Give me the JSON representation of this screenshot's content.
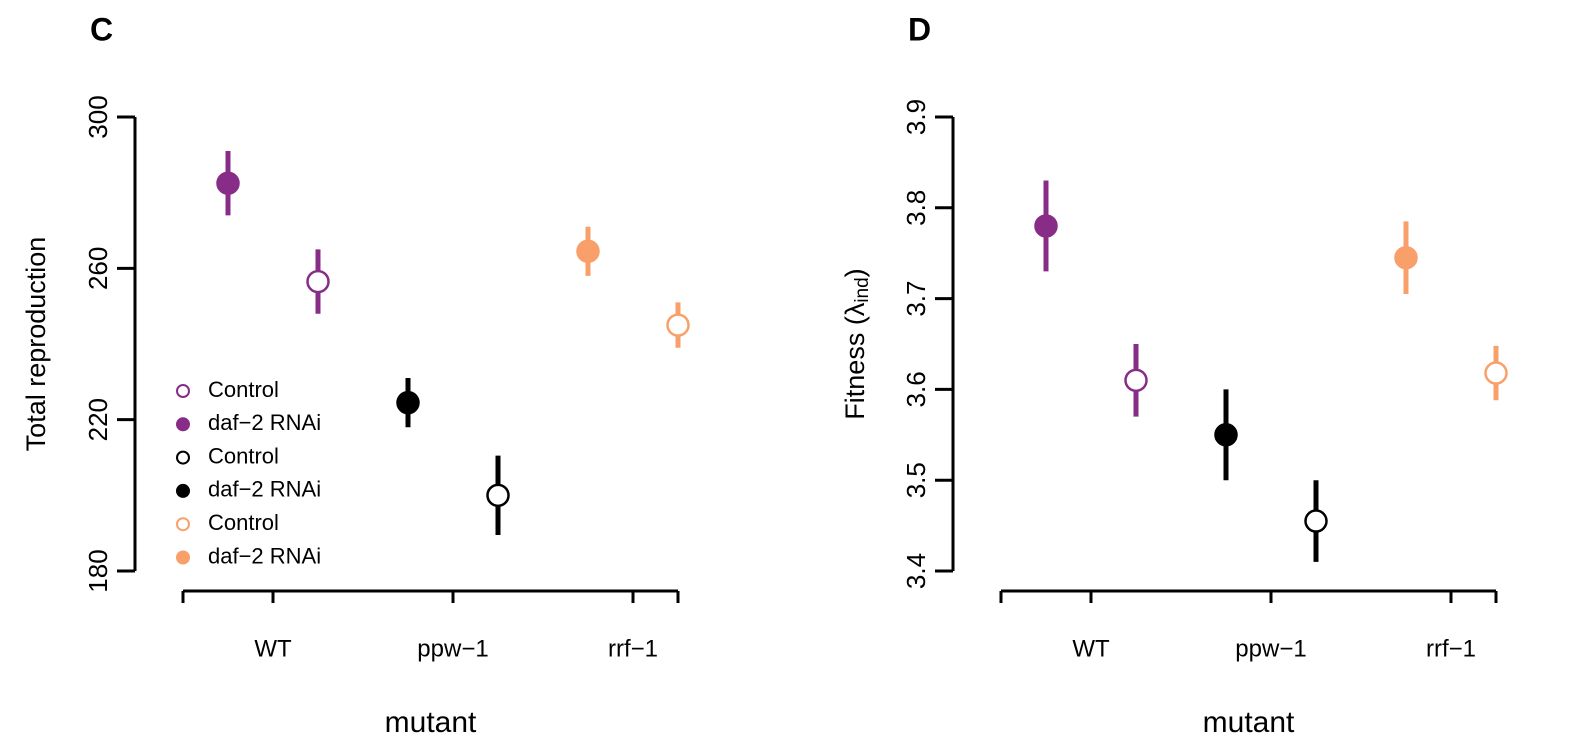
{
  "chart_data": [
    {
      "type": "dot-errorbar",
      "panel_label": "C",
      "ylabel": "Total reproduction",
      "xlabel": "mutant",
      "categories": [
        "WT",
        "ppw−1",
        "rrf−1"
      ],
      "ylim": [
        180,
        300
      ],
      "yticks": [
        180,
        220,
        260,
        300
      ],
      "legend": "bottomleft",
      "series": [
        {
          "name": "Control",
          "color": "#882d87",
          "filled": false,
          "values": [
            256.5,
            null,
            null
          ],
          "errors": [
            8.5,
            null,
            null
          ]
        },
        {
          "name": "daf−2 RNAi",
          "color": "#882d87",
          "filled": true,
          "values": [
            282.5,
            null,
            null
          ],
          "errors": [
            8.5,
            null,
            null
          ]
        },
        {
          "name": "Control",
          "color": "#000000",
          "filled": false,
          "values": [
            null,
            200,
            null
          ],
          "errors": [
            null,
            10.5,
            null
          ]
        },
        {
          "name": "daf−2 RNAi",
          "color": "#000000",
          "filled": true,
          "values": [
            null,
            224.5,
            null
          ],
          "errors": [
            null,
            6.5,
            null
          ]
        },
        {
          "name": "Control",
          "color": "#f9a06a",
          "filled": false,
          "values": [
            null,
            null,
            245
          ],
          "errors": [
            null,
            null,
            6
          ]
        },
        {
          "name": "daf−2 RNAi",
          "color": "#f9a06a",
          "filled": true,
          "values": [
            null,
            null,
            264.5
          ],
          "errors": [
            null,
            null,
            6.5
          ]
        }
      ]
    },
    {
      "type": "dot-errorbar",
      "panel_label": "D",
      "ylabel": "Fitness (λ",
      "ylabel_subscript": "ind",
      "ylabel_suffix": ")",
      "xlabel": "mutant",
      "categories": [
        "WT",
        "ppw−1",
        "rrf−1"
      ],
      "ylim": [
        3.4,
        3.9
      ],
      "yticks": [
        3.4,
        3.5,
        3.6,
        3.7,
        3.8,
        3.9
      ],
      "series": [
        {
          "color": "#882d87",
          "filled": false,
          "values": [
            3.61,
            null,
            null
          ],
          "errors": [
            0.04,
            null,
            null
          ]
        },
        {
          "color": "#882d87",
          "filled": true,
          "values": [
            3.78,
            null,
            null
          ],
          "errors": [
            0.05,
            null,
            null
          ]
        },
        {
          "color": "#000000",
          "filled": false,
          "values": [
            null,
            3.455,
            null
          ],
          "errors": [
            null,
            0.045,
            null
          ]
        },
        {
          "color": "#000000",
          "filled": true,
          "values": [
            null,
            3.55,
            null
          ],
          "errors": [
            null,
            0.05,
            null
          ]
        },
        {
          "color": "#f9a06a",
          "filled": false,
          "values": [
            null,
            null,
            3.618
          ],
          "errors": [
            null,
            null,
            0.03
          ]
        },
        {
          "color": "#f9a06a",
          "filled": true,
          "values": [
            null,
            null,
            3.745
          ],
          "errors": [
            null,
            null,
            0.04
          ]
        }
      ]
    }
  ]
}
